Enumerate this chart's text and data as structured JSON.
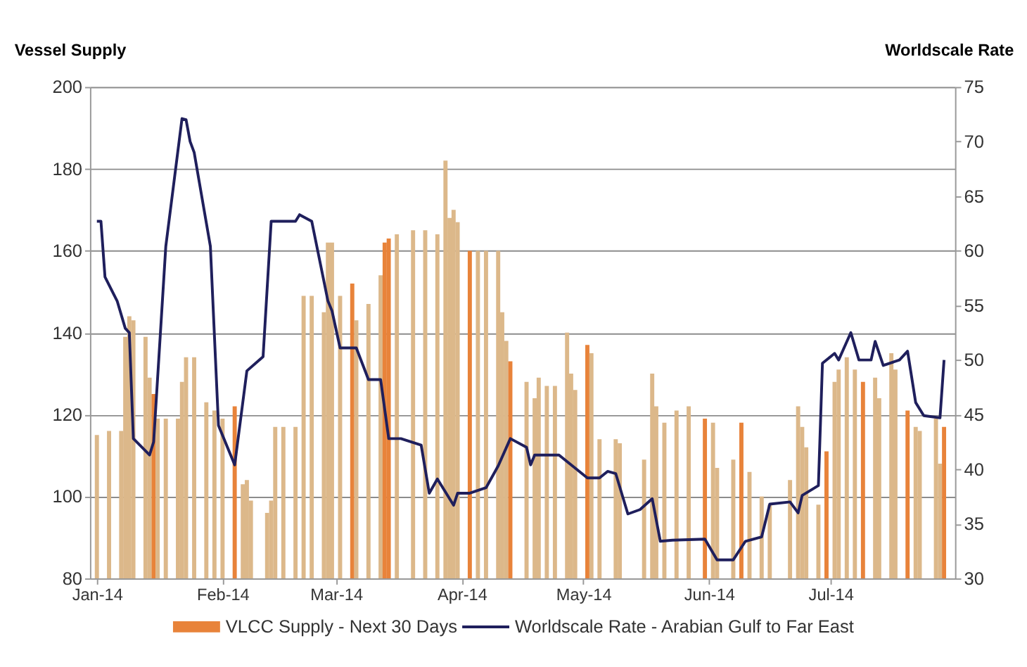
{
  "chart_data": {
    "type": "bar",
    "ylabel": "Vessel Supply",
    "y2label": "Worldscale Rate",
    "xlim": [
      "2014-01-01",
      "2014-07-30"
    ],
    "xticks": [
      {
        "value": "2014-01-01",
        "label": "Jan-14"
      },
      {
        "value": "2014-02-01",
        "label": "Feb-14"
      },
      {
        "value": "2014-03-01",
        "label": "Mar-14"
      },
      {
        "value": "2014-04-01",
        "label": "Apr-14"
      },
      {
        "value": "2014-05-01",
        "label": "May-14"
      },
      {
        "value": "2014-06-01",
        "label": "Jun-14"
      },
      {
        "value": "2014-07-01",
        "label": "Jul-14"
      }
    ],
    "ylim": [
      80,
      200
    ],
    "yticks": [
      80,
      100,
      120,
      140,
      160,
      180,
      200
    ],
    "y2lim": [
      30,
      75
    ],
    "y2ticks": [
      30,
      35,
      40,
      45,
      50,
      55,
      60,
      65,
      70,
      75
    ],
    "grid": "y",
    "legend": "bottom",
    "series": [
      {
        "name": "VLCC Supply - Next 30 Days",
        "color": "#e8833a",
        "x": [
          "2014-01-01",
          "2014-01-04",
          "2014-01-07",
          "2014-01-08",
          "2014-01-09",
          "2014-01-10",
          "2014-01-13",
          "2014-01-14",
          "2014-01-15",
          "2014-01-16",
          "2014-01-18",
          "2014-01-21",
          "2014-01-22",
          "2014-01-23",
          "2014-01-25",
          "2014-01-28",
          "2014-01-30",
          "2014-02-01",
          "2014-02-04",
          "2014-02-06",
          "2014-02-07",
          "2014-02-08",
          "2014-02-12",
          "2014-02-13",
          "2014-02-14",
          "2014-02-16",
          "2014-02-19",
          "2014-02-21",
          "2014-02-23",
          "2014-02-26",
          "2014-02-27",
          "2014-02-28",
          "2014-03-02",
          "2014-03-05",
          "2014-03-06",
          "2014-03-09",
          "2014-03-12",
          "2014-03-13",
          "2014-03-14",
          "2014-03-16",
          "2014-03-20",
          "2014-03-23",
          "2014-03-26",
          "2014-03-28",
          "2014-03-29",
          "2014-03-30",
          "2014-03-31",
          "2014-04-03",
          "2014-04-05",
          "2014-04-07",
          "2014-04-10",
          "2014-04-11",
          "2014-04-12",
          "2014-04-13",
          "2014-04-17",
          "2014-04-19",
          "2014-04-20",
          "2014-04-22",
          "2014-04-24",
          "2014-04-27",
          "2014-04-28",
          "2014-04-29",
          "2014-05-02",
          "2014-05-03",
          "2014-05-05",
          "2014-05-09",
          "2014-05-10",
          "2014-05-16",
          "2014-05-18",
          "2014-05-19",
          "2014-05-21",
          "2014-05-24",
          "2014-05-27",
          "2014-05-31",
          "2014-06-02",
          "2014-06-03",
          "2014-06-07",
          "2014-06-09",
          "2014-06-11",
          "2014-06-14",
          "2014-06-16",
          "2014-06-21",
          "2014-06-23",
          "2014-06-24",
          "2014-06-25",
          "2014-06-28",
          "2014-06-30",
          "2014-07-02",
          "2014-07-03",
          "2014-07-05",
          "2014-07-07",
          "2014-07-09",
          "2014-07-12",
          "2014-07-13",
          "2014-07-16",
          "2014-07-17",
          "2014-07-20",
          "2014-07-22",
          "2014-07-23",
          "2014-07-27",
          "2014-07-28",
          "2014-07-29"
        ],
        "values": [
          115,
          116,
          116,
          139,
          144,
          143,
          139,
          129,
          125,
          119,
          119,
          119,
          128,
          134,
          134,
          123,
          121,
          119,
          122,
          103,
          104,
          99,
          96,
          99,
          117,
          117,
          117,
          149,
          149,
          145,
          162,
          162,
          149,
          152,
          143,
          147,
          154,
          162,
          163,
          164,
          165,
          165,
          164,
          182,
          168,
          170,
          167,
          160,
          160,
          160,
          160,
          145,
          138,
          133,
          128,
          124,
          129,
          127,
          127,
          140,
          130,
          126,
          137,
          135,
          114,
          114,
          113,
          109,
          130,
          122,
          118,
          121,
          122,
          119,
          118,
          107,
          109,
          118,
          106,
          100,
          98,
          104,
          122,
          117,
          112,
          98,
          111,
          128,
          131,
          134,
          131,
          128,
          129,
          124,
          135,
          131,
          121,
          117,
          116,
          119,
          108,
          117
        ],
        "colors": [
          "#dcb88a",
          "#dcb88a",
          "#dcb88a",
          "#dcb88a",
          "#dcb88a",
          "#dcb88a",
          "#dcb88a",
          "#dcb88a",
          "#e8833a",
          "#dcb88a",
          "#dcb88a",
          "#dcb88a",
          "#dcb88a",
          "#dcb88a",
          "#dcb88a",
          "#dcb88a",
          "#dcb88a",
          "#dcb88a",
          "#e8833a",
          "#dcb88a",
          "#dcb88a",
          "#dcb88a",
          "#dcb88a",
          "#dcb88a",
          "#dcb88a",
          "#dcb88a",
          "#dcb88a",
          "#dcb88a",
          "#dcb88a",
          "#dcb88a",
          "#dcb88a",
          "#dcb88a",
          "#dcb88a",
          "#e8833a",
          "#dcb88a",
          "#dcb88a",
          "#dcb88a",
          "#e8833a",
          "#e8833a",
          "#dcb88a",
          "#dcb88a",
          "#dcb88a",
          "#dcb88a",
          "#dcb88a",
          "#dcb88a",
          "#dcb88a",
          "#dcb88a",
          "#e8833a",
          "#dcb88a",
          "#dcb88a",
          "#dcb88a",
          "#dcb88a",
          "#dcb88a",
          "#e8833a",
          "#dcb88a",
          "#dcb88a",
          "#dcb88a",
          "#dcb88a",
          "#dcb88a",
          "#dcb88a",
          "#dcb88a",
          "#dcb88a",
          "#e8833a",
          "#dcb88a",
          "#dcb88a",
          "#dcb88a",
          "#dcb88a",
          "#dcb88a",
          "#dcb88a",
          "#dcb88a",
          "#dcb88a",
          "#dcb88a",
          "#dcb88a",
          "#e8833a",
          "#dcb88a",
          "#dcb88a",
          "#dcb88a",
          "#e8833a",
          "#dcb88a",
          "#dcb88a",
          "#dcb88a",
          "#dcb88a",
          "#dcb88a",
          "#dcb88a",
          "#dcb88a",
          "#dcb88a",
          "#e8833a",
          "#dcb88a",
          "#dcb88a",
          "#dcb88a",
          "#dcb88a",
          "#e8833a",
          "#dcb88a",
          "#dcb88a",
          "#dcb88a",
          "#dcb88a",
          "#e8833a",
          "#dcb88a",
          "#dcb88a",
          "#dcb88a",
          "#dcb88a",
          "#e8833a"
        ]
      },
      {
        "name": "Worldscale Rate - Arabian Gulf to Far East",
        "type": "line",
        "axis": "y2",
        "color": "#1f1f5c",
        "x": [
          "2014-01-01",
          "2014-01-02",
          "2014-01-03",
          "2014-01-06",
          "2014-01-08",
          "2014-01-09",
          "2014-01-10",
          "2014-01-14",
          "2014-01-15",
          "2014-01-18",
          "2014-01-22",
          "2014-01-23",
          "2014-01-24",
          "2014-01-25",
          "2014-01-29",
          "2014-01-31",
          "2014-02-04",
          "2014-02-07",
          "2014-02-11",
          "2014-02-13",
          "2014-02-19",
          "2014-02-20",
          "2014-02-23",
          "2014-02-27",
          "2014-02-28",
          "2014-03-02",
          "2014-03-06",
          "2014-03-09",
          "2014-03-12",
          "2014-03-14",
          "2014-03-17",
          "2014-03-22",
          "2014-03-24",
          "2014-03-26",
          "2014-03-30",
          "2014-03-31",
          "2014-04-03",
          "2014-04-07",
          "2014-04-10",
          "2014-04-13",
          "2014-04-17",
          "2014-04-18",
          "2014-04-19",
          "2014-04-25",
          "2014-05-02",
          "2014-05-05",
          "2014-05-07",
          "2014-05-09",
          "2014-05-12",
          "2014-05-15",
          "2014-05-18",
          "2014-05-20",
          "2014-05-23",
          "2014-05-31",
          "2014-06-03",
          "2014-06-07",
          "2014-06-10",
          "2014-06-14",
          "2014-06-16",
          "2014-06-21",
          "2014-06-23",
          "2014-06-24",
          "2014-06-28",
          "2014-06-29",
          "2014-07-02",
          "2014-07-03",
          "2014-07-06",
          "2014-07-08",
          "2014-07-11",
          "2014-07-12",
          "2014-07-14",
          "2014-07-18",
          "2014-07-20",
          "2014-07-22",
          "2014-07-24",
          "2014-07-28",
          "2014-07-29"
        ],
        "values": [
          62.7,
          62.7,
          57.6,
          55.4,
          52.9,
          52.5,
          42.8,
          41.3,
          42.5,
          60.4,
          72.1,
          72,
          70,
          69,
          60.4,
          44,
          40.4,
          49,
          50.3,
          62.7,
          62.7,
          63.3,
          62.7,
          55.4,
          54.5,
          51.1,
          51.1,
          48.2,
          48.2,
          42.8,
          42.8,
          42.2,
          37.8,
          39.1,
          36.7,
          37.8,
          37.8,
          38.3,
          40.3,
          42.8,
          42,
          40.4,
          41.3,
          41.3,
          39.2,
          39.2,
          39.8,
          39.6,
          35.9,
          36.3,
          37.3,
          33.4,
          33.5,
          33.6,
          31.7,
          31.7,
          33.4,
          33.8,
          36.8,
          37,
          36,
          37.6,
          38.5,
          49.7,
          50.6,
          50,
          52.5,
          50,
          50,
          51.7,
          49.5,
          50,
          50.8,
          46.1,
          44.9,
          44.7,
          50
        ]
      }
    ]
  }
}
